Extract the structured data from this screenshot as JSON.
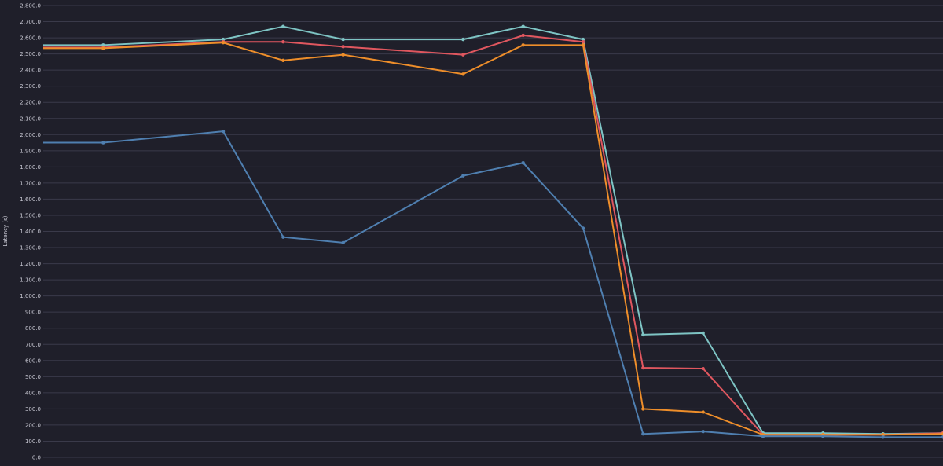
{
  "chart_data": {
    "type": "line",
    "title": "",
    "xlabel": "",
    "ylabel": "Latency (s)",
    "ylim": [
      0,
      2800
    ],
    "yticks": [
      0,
      100,
      200,
      300,
      400,
      500,
      600,
      700,
      800,
      900,
      1000,
      1100,
      1200,
      1300,
      1400,
      1500,
      1600,
      1700,
      1800,
      1900,
      2000,
      2100,
      2200,
      2300,
      2400,
      2500,
      2600,
      2700,
      2800
    ],
    "ytick_labels": [
      "0.0",
      "100.0",
      "200.0",
      "300.0",
      "400.0",
      "500.0",
      "600.0",
      "700.0",
      "800.0",
      "900.0",
      "1,000.0",
      "1,100.0",
      "1,200.0",
      "1,300.0",
      "1,400.0",
      "1,500.0",
      "1,600.0",
      "1,700.0",
      "1,800.0",
      "1,900.0",
      "2,000.0",
      "2,100.0",
      "2,200.0",
      "2,300.0",
      "2,400.0",
      "2,500.0",
      "2,600.0",
      "2,700.0",
      "2,800.0"
    ],
    "grid": true,
    "legend": "none",
    "x": [
      1,
      3,
      4,
      5,
      7,
      8,
      9,
      10,
      11,
      12,
      13,
      14,
      15
    ],
    "series": [
      {
        "color": "#7ec4c4",
        "values": [
          2555,
          2590,
          2670,
          2590,
          2590,
          2670,
          2590,
          760,
          770,
          150,
          150,
          145,
          150
        ]
      },
      {
        "color": "#e0575f",
        "values": [
          2540,
          2575,
          2575,
          2545,
          2495,
          2615,
          2575,
          555,
          550,
          140,
          140,
          140,
          150
        ]
      },
      {
        "color": "#ee8e2a",
        "values": [
          2535,
          2570,
          2460,
          2495,
          2375,
          2555,
          2555,
          300,
          280,
          140,
          140,
          140,
          145
        ]
      },
      {
        "color": "#4f7fb0",
        "values": [
          1950,
          2020,
          1365,
          1330,
          1745,
          1825,
          1420,
          145,
          160,
          130,
          130,
          125,
          125
        ]
      }
    ]
  }
}
